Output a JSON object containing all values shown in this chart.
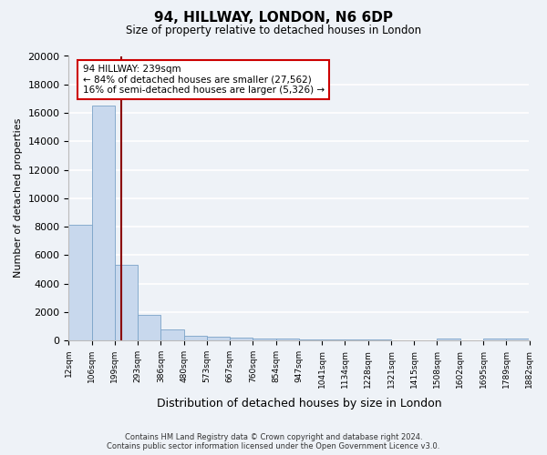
{
  "title": "94, HILLWAY, LONDON, N6 6DP",
  "subtitle": "Size of property relative to detached houses in London",
  "xlabel": "Distribution of detached houses by size in London",
  "ylabel": "Number of detached properties",
  "bar_values": [
    8100,
    16500,
    5300,
    1800,
    750,
    300,
    250,
    200,
    150,
    100,
    80,
    60,
    50,
    40,
    30,
    20,
    150,
    20,
    100,
    150
  ],
  "categories": [
    "12sqm",
    "106sqm",
    "199sqm",
    "293sqm",
    "386sqm",
    "480sqm",
    "573sqm",
    "667sqm",
    "760sqm",
    "854sqm",
    "947sqm",
    "1041sqm",
    "1134sqm",
    "1228sqm",
    "1321sqm",
    "1415sqm",
    "1508sqm",
    "1602sqm",
    "1695sqm",
    "1789sqm",
    "1882sqm"
  ],
  "bar_color": "#c8d8ed",
  "bar_edge_color": "#7ba3c8",
  "property_line_x": 2.3,
  "property_line_color": "#8b0000",
  "annotation_title": "94 HILLWAY: 239sqm",
  "annotation_line1": "← 84% of detached houses are smaller (27,562)",
  "annotation_line2": "16% of semi-detached houses are larger (5,326) →",
  "annotation_box_color": "#ffffff",
  "annotation_box_edge_color": "#cc0000",
  "ylim": [
    0,
    20000
  ],
  "yticks": [
    0,
    2000,
    4000,
    6000,
    8000,
    10000,
    12000,
    14000,
    16000,
    18000,
    20000
  ],
  "background_color": "#eef2f7",
  "grid_color": "#ffffff",
  "footer_line1": "Contains HM Land Registry data © Crown copyright and database right 2024.",
  "footer_line2": "Contains public sector information licensed under the Open Government Licence v3.0."
}
